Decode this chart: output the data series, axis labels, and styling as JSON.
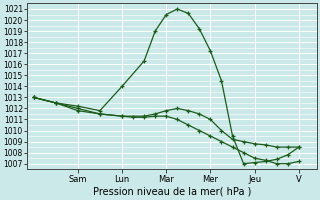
{
  "xlabel": "Pression niveau de la mer( hPa )",
  "ylim": [
    1006.5,
    1021.5
  ],
  "yticks": [
    1007,
    1008,
    1009,
    1010,
    1011,
    1012,
    1013,
    1014,
    1015,
    1016,
    1017,
    1018,
    1019,
    1020,
    1021
  ],
  "day_labels": [
    "Sam",
    "Lun",
    "Mar",
    "Mer",
    "Jeu",
    "V"
  ],
  "background_color": "#cce9e9",
  "grid_color": "#ffffff",
  "line_color": "#1a5c1a",
  "line1_x": [
    0,
    1,
    2,
    3,
    4,
    5,
    5.5,
    6,
    6.5,
    7,
    7.5,
    8,
    8.5,
    9,
    9.5,
    10,
    10.5,
    11,
    11.5,
    12
  ],
  "line1_y": [
    1013,
    1012.5,
    1012.2,
    1011.8,
    1014.0,
    1016.3,
    1019.0,
    1020.5,
    1021.0,
    1020.6,
    1019.2,
    1017.2,
    1014.5,
    1009.5,
    1007.0,
    1007.1,
    1007.2,
    1007.4,
    1007.8,
    1008.5
  ],
  "line2_x": [
    0,
    1,
    2,
    3,
    4,
    5,
    5.5,
    6,
    6.5,
    7,
    7.5,
    8,
    8.5,
    9,
    9.5,
    10,
    10.5,
    11,
    11.5,
    12
  ],
  "line2_y": [
    1013,
    1012.5,
    1012.0,
    1011.5,
    1011.3,
    1011.3,
    1011.5,
    1011.8,
    1012.0,
    1011.8,
    1011.5,
    1011.0,
    1010.0,
    1009.2,
    1009.0,
    1008.8,
    1008.7,
    1008.5,
    1008.5,
    1008.5
  ],
  "line3_x": [
    0,
    1,
    2,
    3,
    4,
    4.5,
    5,
    5.5,
    6,
    6.5,
    7,
    7.5,
    8,
    8.5,
    9,
    9.5,
    10,
    10.5,
    11,
    11.5,
    12
  ],
  "line3_y": [
    1013,
    1012.5,
    1011.8,
    1011.5,
    1011.3,
    1011.2,
    1011.2,
    1011.3,
    1011.3,
    1011.0,
    1010.5,
    1010.0,
    1009.5,
    1009.0,
    1008.5,
    1008.0,
    1007.5,
    1007.3,
    1007.0,
    1007.0,
    1007.2
  ],
  "day_x_positions": [
    2,
    4,
    6,
    8,
    10,
    12
  ],
  "xlim": [
    -0.3,
    12.8
  ]
}
